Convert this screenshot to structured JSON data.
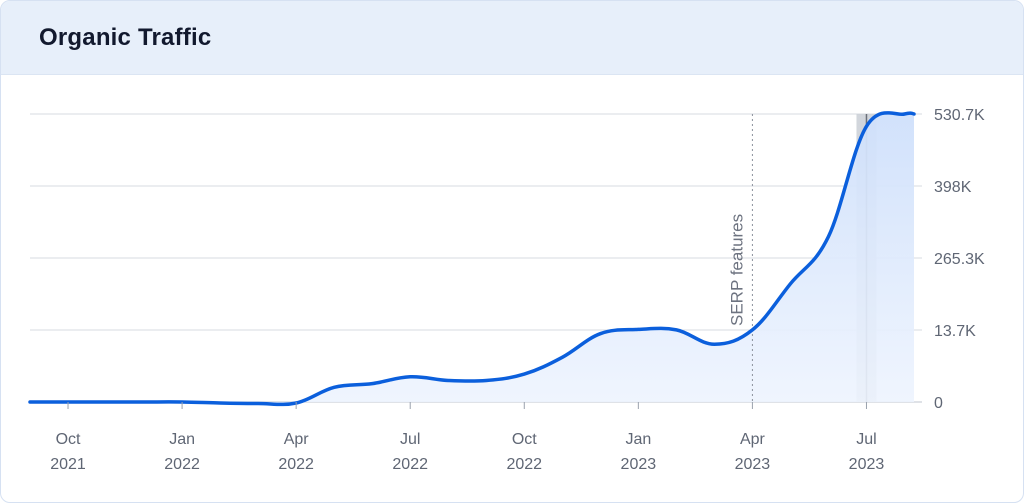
{
  "card": {
    "title": "Organic Traffic"
  },
  "chart_data": {
    "type": "area",
    "title": "Organic Traffic",
    "xlabel": "",
    "ylabel": "",
    "x_start": "2021-09",
    "x_end": "2023-08",
    "y_tick_labels": [
      "0",
      "13.7K",
      "265.3K",
      "398K",
      "530.7K"
    ],
    "x_ticks": [
      {
        "month": "Oct",
        "year": "2021"
      },
      {
        "month": "Jan",
        "year": "2022"
      },
      {
        "month": "Apr",
        "year": "2022"
      },
      {
        "month": "Jul",
        "year": "2022"
      },
      {
        "month": "Oct",
        "year": "2022"
      },
      {
        "month": "Jan",
        "year": "2023"
      },
      {
        "month": "Apr",
        "year": "2023"
      },
      {
        "month": "Jul",
        "year": "2023"
      }
    ],
    "grid": true,
    "annotation": {
      "label": "SERP features",
      "month": "Apr 2023"
    },
    "highlight_month": "Jul 2023",
    "series": [
      {
        "color": "#0b5fdc",
        "points": [
          {
            "x": "Sep 2021",
            "y": 0
          },
          {
            "x": "Oct 2021",
            "y": 0
          },
          {
            "x": "Nov 2021",
            "y": 0
          },
          {
            "x": "Dec 2021",
            "y": 0
          },
          {
            "x": "Jan 2022",
            "y": 0
          },
          {
            "x": "Feb 2022",
            "y": -2
          },
          {
            "x": "Mar 2022",
            "y": -3
          },
          {
            "x": "Apr 2022",
            "y": -2
          },
          {
            "x": "May 2022",
            "y": 2.8
          },
          {
            "x": "Jun 2022",
            "y": 3.5
          },
          {
            "x": "Jul 2022",
            "y": 4.8
          },
          {
            "x": "Aug 2022",
            "y": 4.1
          },
          {
            "x": "Sep 2022",
            "y": 4.1
          },
          {
            "x": "Oct 2022",
            "y": 5.3
          },
          {
            "x": "Nov 2022",
            "y": 8.5
          },
          {
            "x": "Dec 2022",
            "y": 13.0
          },
          {
            "x": "Jan 2023",
            "y": 15.7
          },
          {
            "x": "Feb 2023",
            "y": 13.9
          },
          {
            "x": "Mar 2023",
            "y": 11.0
          },
          {
            "x": "Apr 2023",
            "y": 14.0
          },
          {
            "x": "May 2023",
            "y": 175.0
          },
          {
            "x": "Jun 2023",
            "y": 305.0
          },
          {
            "x": "Jul 2023",
            "y": 508.0
          },
          {
            "x": "Aug 2023",
            "y": 530.7
          }
        ]
      }
    ]
  }
}
